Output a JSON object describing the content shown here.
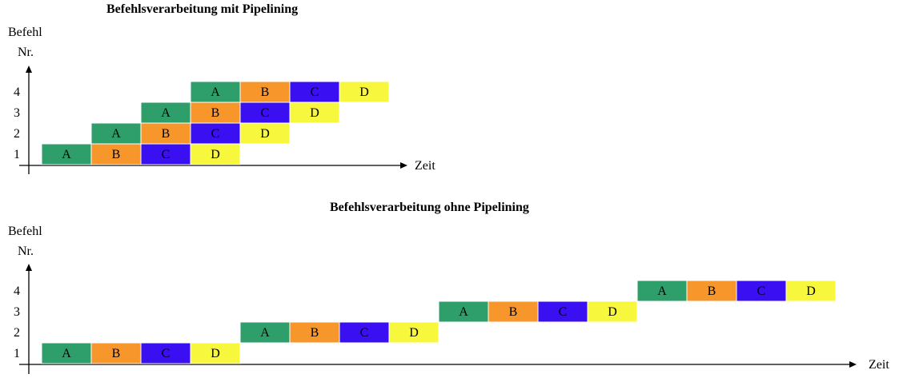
{
  "diagram1": {
    "title": "Befehlsverarbeitung mit Pipelining",
    "y_label_line1": "Befehl",
    "y_label_line2": "Nr.",
    "x_label": "Zeit",
    "row_labels": [
      "1",
      "2",
      "3",
      "4"
    ],
    "rows": [
      [
        "A",
        "B",
        "C",
        "D"
      ],
      [
        "A",
        "B",
        "C",
        "D"
      ],
      [
        "A",
        "B",
        "C",
        "D"
      ],
      [
        "A",
        "B",
        "C",
        "D"
      ]
    ]
  },
  "diagram2": {
    "title": "Befehlsverarbeitung ohne Pipelining",
    "y_label_line1": "Befehl",
    "y_label_line2": "Nr.",
    "x_label": "Zeit",
    "row_labels": [
      "1",
      "2",
      "3",
      "4"
    ],
    "rows": [
      [
        "A",
        "B",
        "C",
        "D"
      ],
      [
        "A",
        "B",
        "C",
        "D"
      ],
      [
        "A",
        "B",
        "C",
        "D"
      ],
      [
        "A",
        "B",
        "C",
        "D"
      ]
    ]
  },
  "stage_colors": {
    "A": "#2e9e6b",
    "B": "#f7962b",
    "C": "#3a10f2",
    "D": "#f7f73d"
  }
}
